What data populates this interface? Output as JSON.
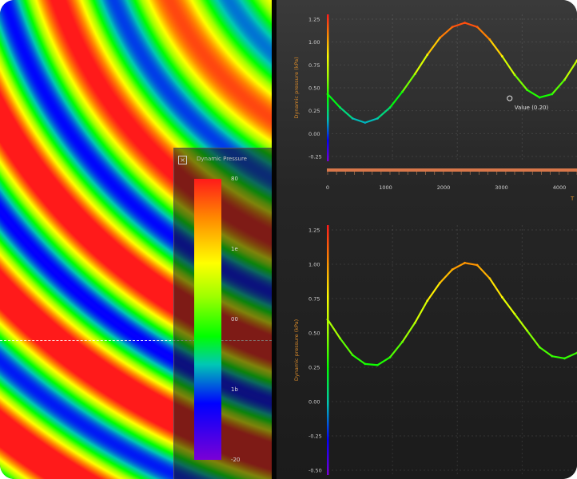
{
  "heatmap": {
    "colorscale": [
      "#ff1a1a",
      "#ff8a00",
      "#ffff00",
      "#9dff00",
      "#00ff00",
      "#00c8b4",
      "#0000ff",
      "#7a00d6"
    ]
  },
  "legend": {
    "title": "Dynamic Pressure",
    "ticks": [
      {
        "label": "80",
        "pos": 0.0
      },
      {
        "label": "1e",
        "pos": 0.25
      },
      {
        "label": "00",
        "pos": 0.5
      },
      {
        "label": "1b",
        "pos": 0.75
      },
      {
        "label": "-20",
        "pos": 1.0
      }
    ]
  },
  "chart_data": [
    {
      "type": "line",
      "ylabel": "Dynamic pressure (kPa)",
      "xlabel": "T",
      "xlim": [
        0,
        2000
      ],
      "ylim": [
        -0.25,
        1.5
      ],
      "x_ticks": [
        "0",
        "1000",
        "2000",
        "3000",
        "4000"
      ],
      "y_ticks": [
        "1.25",
        "1.00",
        "0.75",
        "0.50",
        "0.25",
        "0.00",
        "-0.25"
      ],
      "annotation": {
        "text": "Value (0.20)",
        "x": 1460,
        "y": 0.5
      },
      "series": [
        {
          "x": [
            0,
            100,
            200,
            300,
            400,
            500,
            600,
            700,
            800,
            900,
            1000,
            1100,
            1200,
            1300,
            1400,
            1500,
            1600,
            1700,
            1800,
            1900,
            2000
          ],
          "y": [
            0.55,
            0.39,
            0.26,
            0.21,
            0.26,
            0.39,
            0.58,
            0.79,
            1.02,
            1.22,
            1.35,
            1.4,
            1.35,
            1.2,
            1.0,
            0.78,
            0.6,
            0.51,
            0.55,
            0.72,
            0.95
          ]
        }
      ]
    },
    {
      "type": "line",
      "ylabel": "Dynamic pressure (kPa)",
      "ylim": [
        -0.75,
        1.5
      ],
      "y_ticks": [
        "1.25",
        "1.00",
        "0.75",
        "0.50",
        "0.25",
        "0.00",
        "-0.25",
        "-0.50"
      ],
      "series": [
        {
          "x": [
            0,
            100,
            200,
            300,
            400,
            500,
            600,
            700,
            800,
            900,
            1000,
            1100,
            1200,
            1300,
            1400,
            1500,
            1600,
            1700,
            1800,
            1900,
            2000
          ],
          "y": [
            0.65,
            0.48,
            0.33,
            0.25,
            0.24,
            0.31,
            0.45,
            0.62,
            0.82,
            0.98,
            1.1,
            1.16,
            1.14,
            1.02,
            0.85,
            0.7,
            0.55,
            0.4,
            0.32,
            0.3,
            0.35
          ]
        }
      ]
    }
  ]
}
